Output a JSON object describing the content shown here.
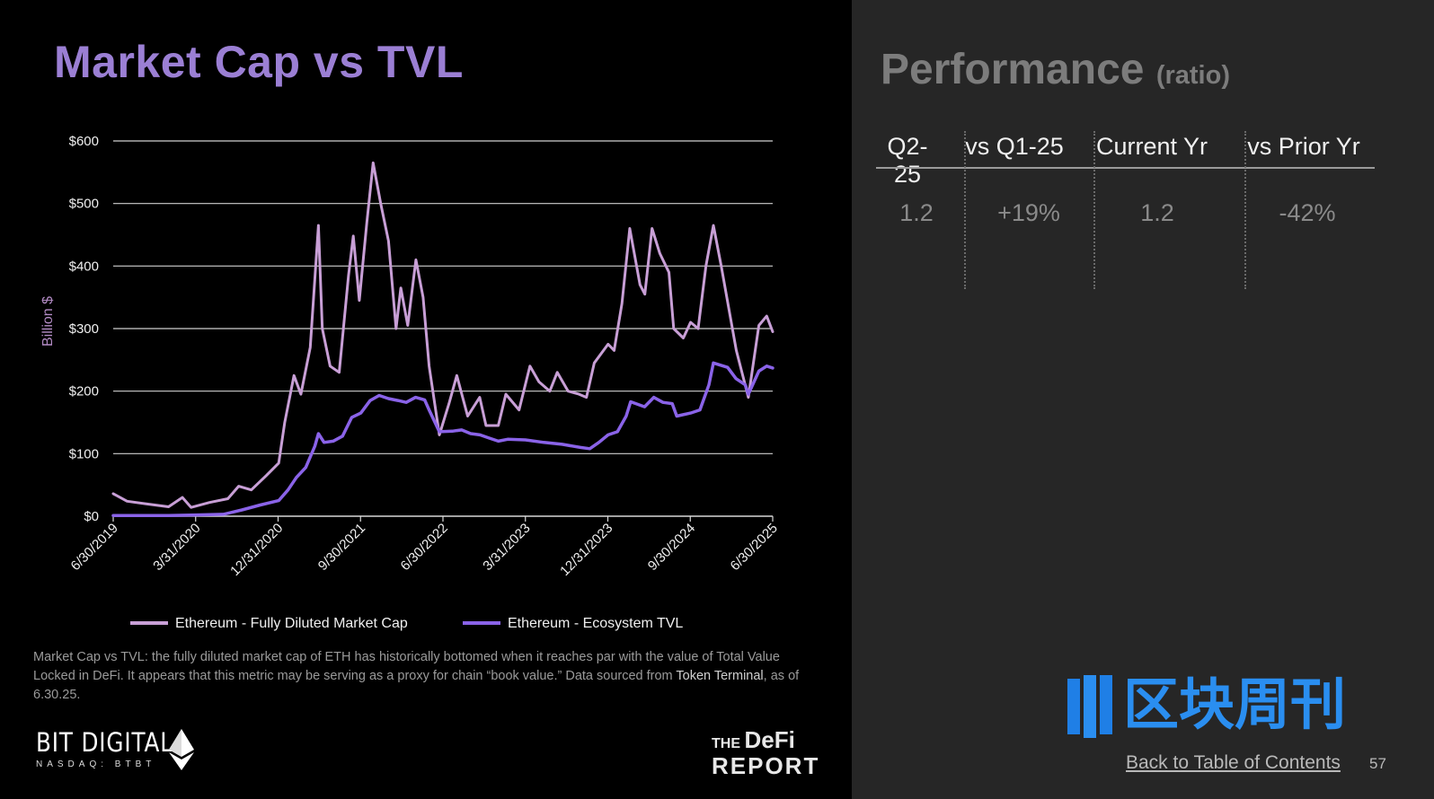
{
  "left_title": "Market Cap vs TVL",
  "caption": {
    "pre": "Market Cap vs TVL: the fully diluted market cap of ETH has historically bottomed when it reaches par with the value of Total Value Locked in DeFi. It appears that this metric may be serving as a proxy for chain “book value.” Data sourced from ",
    "source": "Token Terminal",
    "post": ", as of 6.30.25."
  },
  "logos": {
    "bit_digital": "BIT DIGITAL",
    "bit_digital_ticker": "NASDAQ: BTBT",
    "defi_the": "THE",
    "defi_name": "DeFi",
    "defi_report": "REPORT",
    "brand_cn": "区块周刊"
  },
  "performance": {
    "title": "Performance",
    "subtitle": "(ratio)",
    "headers": [
      "Q2-25",
      "vs Q1-25",
      "Current Yr",
      "vs Prior Yr"
    ],
    "values": [
      "1.2",
      "+19%",
      "1.2",
      "-42%"
    ]
  },
  "footer": {
    "toc_link": "Back to Table of Contents",
    "page_number": "57"
  },
  "colors": {
    "title": "#9b7fd4",
    "market_cap": "#c89fd6",
    "tvl": "#8a63e8",
    "panel_bg": "#262626"
  },
  "chart_data": {
    "type": "line",
    "ylabel": "Billion $",
    "ylim": [
      0,
      600
    ],
    "yticks": [
      "$0",
      "$100",
      "$200",
      "$300",
      "$400",
      "$500",
      "$600"
    ],
    "xticks": [
      "6/30/2019",
      "3/31/2020",
      "12/31/2020",
      "9/30/2021",
      "6/30/2022",
      "3/31/2023",
      "12/31/2023",
      "9/30/2024",
      "6/30/2025"
    ],
    "grid": true,
    "legend_position": "bottom",
    "series": [
      {
        "name": "Ethereum - Fully Diluted Market Cap",
        "color": "#c89fd6",
        "points": [
          [
            "2019-06-30",
            36
          ],
          [
            "2019-08-15",
            24
          ],
          [
            "2019-10-15",
            20
          ],
          [
            "2019-12-31",
            15
          ],
          [
            "2020-02-15",
            30
          ],
          [
            "2020-03-15",
            14
          ],
          [
            "2020-05-15",
            22
          ],
          [
            "2020-07-15",
            28
          ],
          [
            "2020-08-20",
            48
          ],
          [
            "2020-10-01",
            42
          ],
          [
            "2020-11-20",
            65
          ],
          [
            "2020-12-31",
            85
          ],
          [
            "2021-01-20",
            150
          ],
          [
            "2021-02-20",
            225
          ],
          [
            "2021-03-15",
            195
          ],
          [
            "2021-04-15",
            270
          ],
          [
            "2021-05-12",
            465
          ],
          [
            "2021-05-25",
            300
          ],
          [
            "2021-06-20",
            240
          ],
          [
            "2021-07-20",
            230
          ],
          [
            "2021-08-20",
            385
          ],
          [
            "2021-09-05",
            448
          ],
          [
            "2021-09-25",
            345
          ],
          [
            "2021-10-20",
            470
          ],
          [
            "2021-11-10",
            565
          ],
          [
            "2021-12-05",
            500
          ],
          [
            "2021-12-31",
            440
          ],
          [
            "2022-01-25",
            300
          ],
          [
            "2022-02-10",
            365
          ],
          [
            "2022-03-05",
            305
          ],
          [
            "2022-04-01",
            410
          ],
          [
            "2022-04-25",
            350
          ],
          [
            "2022-05-15",
            240
          ],
          [
            "2022-06-18",
            130
          ],
          [
            "2022-07-20",
            180
          ],
          [
            "2022-08-15",
            225
          ],
          [
            "2022-09-20",
            160
          ],
          [
            "2022-10-30",
            190
          ],
          [
            "2022-11-20",
            145
          ],
          [
            "2022-12-31",
            145
          ],
          [
            "2023-01-25",
            195
          ],
          [
            "2023-03-10",
            170
          ],
          [
            "2023-04-15",
            240
          ],
          [
            "2023-05-15",
            215
          ],
          [
            "2023-06-20",
            200
          ],
          [
            "2023-07-15",
            230
          ],
          [
            "2023-08-20",
            200
          ],
          [
            "2023-09-25",
            195
          ],
          [
            "2023-10-20",
            190
          ],
          [
            "2023-11-15",
            245
          ],
          [
            "2023-12-31",
            275
          ],
          [
            "2024-01-20",
            265
          ],
          [
            "2024-02-15",
            340
          ],
          [
            "2024-03-12",
            460
          ],
          [
            "2024-04-15",
            370
          ],
          [
            "2024-05-01",
            355
          ],
          [
            "2024-05-25",
            460
          ],
          [
            "2024-06-20",
            420
          ],
          [
            "2024-07-20",
            390
          ],
          [
            "2024-08-05",
            300
          ],
          [
            "2024-09-06",
            285
          ],
          [
            "2024-09-30",
            310
          ],
          [
            "2024-10-25",
            300
          ],
          [
            "2024-11-20",
            400
          ],
          [
            "2024-12-15",
            465
          ],
          [
            "2025-01-10",
            400
          ],
          [
            "2025-02-05",
            330
          ],
          [
            "2025-03-01",
            265
          ],
          [
            "2025-04-10",
            190
          ],
          [
            "2025-05-15",
            305
          ],
          [
            "2025-06-10",
            320
          ],
          [
            "2025-06-30",
            295
          ]
        ]
      },
      {
        "name": "Ethereum - Ecosystem TVL",
        "color": "#8a63e8",
        "points": [
          [
            "2019-06-30",
            1
          ],
          [
            "2019-12-31",
            1
          ],
          [
            "2020-03-31",
            2
          ],
          [
            "2020-06-30",
            3
          ],
          [
            "2020-08-31",
            10
          ],
          [
            "2020-10-31",
            18
          ],
          [
            "2020-12-31",
            25
          ],
          [
            "2021-01-31",
            42
          ],
          [
            "2021-02-28",
            62
          ],
          [
            "2021-03-31",
            78
          ],
          [
            "2021-04-30",
            112
          ],
          [
            "2021-05-12",
            132
          ],
          [
            "2021-05-31",
            118
          ],
          [
            "2021-06-30",
            120
          ],
          [
            "2021-07-31",
            128
          ],
          [
            "2021-08-31",
            158
          ],
          [
            "2021-09-30",
            165
          ],
          [
            "2021-10-31",
            185
          ],
          [
            "2021-11-30",
            193
          ],
          [
            "2021-12-31",
            188
          ],
          [
            "2022-01-31",
            185
          ],
          [
            "2022-02-28",
            182
          ],
          [
            "2022-03-31",
            190
          ],
          [
            "2022-04-30",
            186
          ],
          [
            "2022-05-15",
            170
          ],
          [
            "2022-06-18",
            135
          ],
          [
            "2022-07-31",
            136
          ],
          [
            "2022-08-31",
            138
          ],
          [
            "2022-09-30",
            132
          ],
          [
            "2022-10-31",
            130
          ],
          [
            "2022-11-30",
            125
          ],
          [
            "2022-12-31",
            120
          ],
          [
            "2023-01-31",
            123
          ],
          [
            "2023-03-31",
            122
          ],
          [
            "2023-05-31",
            118
          ],
          [
            "2023-07-31",
            115
          ],
          [
            "2023-09-30",
            110
          ],
          [
            "2023-10-31",
            108
          ],
          [
            "2023-11-30",
            118
          ],
          [
            "2023-12-31",
            130
          ],
          [
            "2024-01-31",
            135
          ],
          [
            "2024-02-29",
            160
          ],
          [
            "2024-03-15",
            183
          ],
          [
            "2024-04-30",
            175
          ],
          [
            "2024-05-31",
            190
          ],
          [
            "2024-06-30",
            182
          ],
          [
            "2024-07-31",
            180
          ],
          [
            "2024-08-15",
            160
          ],
          [
            "2024-09-30",
            165
          ],
          [
            "2024-10-31",
            170
          ],
          [
            "2024-11-30",
            210
          ],
          [
            "2024-12-15",
            245
          ],
          [
            "2025-01-31",
            238
          ],
          [
            "2025-02-28",
            220
          ],
          [
            "2025-03-31",
            210
          ],
          [
            "2025-04-10",
            195
          ],
          [
            "2025-05-15",
            232
          ],
          [
            "2025-06-10",
            240
          ],
          [
            "2025-06-30",
            237
          ]
        ]
      }
    ]
  }
}
